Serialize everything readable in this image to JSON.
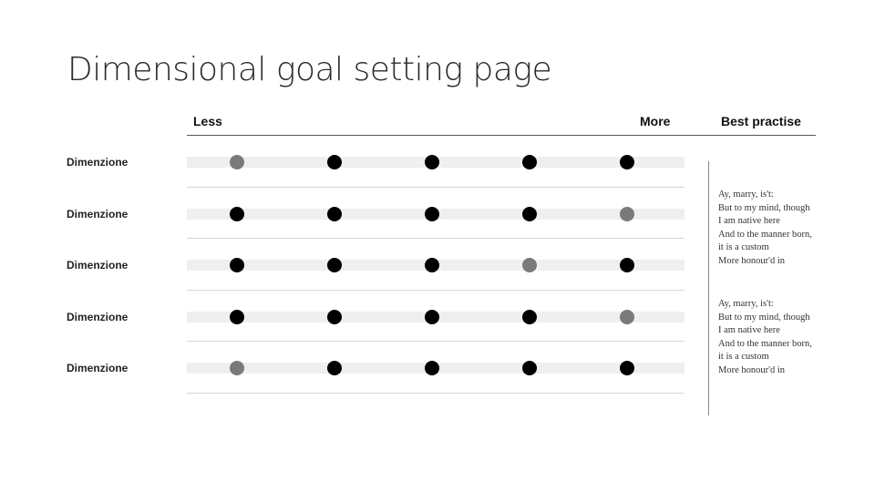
{
  "title": "Dimensional goal setting page",
  "header": {
    "less_label": "Less",
    "more_label": "More",
    "best_practise_label": "Best practise"
  },
  "scale_points": 5,
  "rows": [
    {
      "label": "Dimenzione",
      "selected": 1
    },
    {
      "label": "Dimenzione",
      "selected": 5
    },
    {
      "label": "Dimenzione",
      "selected": 4
    },
    {
      "label": "Dimenzione",
      "selected": 5
    },
    {
      "label": "Dimenzione",
      "selected": 1
    }
  ],
  "best_practise": [
    {
      "lines": [
        "Ay, marry, is't:",
        "But to my mind, though",
        "I am native here",
        "And to the manner born,",
        "it is a custom",
        "More honour'd in"
      ]
    },
    {
      "lines": [
        "Ay, marry, is't:",
        "But to my mind, though",
        "I am native here",
        "And to the manner born,",
        "it is a custom",
        "More honour'd in"
      ]
    }
  ],
  "colors": {
    "dot": "#000000",
    "dot_selected": "#7a7a7a",
    "track": "#efefef"
  }
}
